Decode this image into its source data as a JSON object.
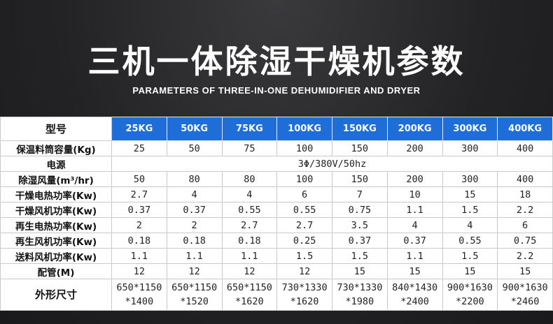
{
  "title": "三机一体除湿干燥机参数",
  "subtitle": "PARAMETERS OF THREE-IN-ONE DEHUMIDIFIER AND DRYER",
  "table": {
    "header_label": "型号",
    "models": [
      "25KG",
      "50KG",
      "75KG",
      "100KG",
      "150KG",
      "200KG",
      "300KG",
      "400KG"
    ],
    "rows": [
      {
        "label": "保温料筒容量(Kg)",
        "values": [
          "25",
          "50",
          "75",
          "100",
          "150",
          "200",
          "300",
          "400"
        ]
      },
      {
        "label": "除湿风量(m³/hr)",
        "values": [
          "50",
          "80",
          "80",
          "100",
          "150",
          "200",
          "300",
          "400"
        ]
      },
      {
        "label": "干燥电热功率(Kw)",
        "values": [
          "2.7",
          "4",
          "4",
          "6",
          "7",
          "10",
          "15",
          "18"
        ]
      },
      {
        "label": "干燥风机功率(Kw)",
        "values": [
          "0.37",
          "0.37",
          "0.55",
          "0.55",
          "0.75",
          "1.1",
          "1.5",
          "2.2"
        ]
      },
      {
        "label": "再生电热功率(Kw)",
        "values": [
          "2",
          "2",
          "2.7",
          "2.7",
          "3.5",
          "4",
          "4",
          "6"
        ]
      },
      {
        "label": "再生风机功率(Kw)",
        "values": [
          "0.18",
          "0.18",
          "0.18",
          "0.25",
          "0.37",
          "0.37",
          "0.55",
          "0.75"
        ]
      },
      {
        "label": "送料风机功率(Kw)",
        "values": [
          "1.1",
          "1.1",
          "1.1",
          "1.5",
          "1.5",
          "1.1",
          "1.5",
          "2.2"
        ]
      },
      {
        "label": "配管(M)",
        "values": [
          "12",
          "12",
          "12",
          "12",
          "15",
          "15",
          "15",
          "15"
        ]
      }
    ],
    "power": {
      "label": "电源",
      "value": "3Φ/380V/50hz"
    },
    "dims": {
      "label": "外形尺寸",
      "values": [
        "650*1150 *1400",
        "650*1150 *1520",
        "650*1150 *1620",
        "730*1330 *1620",
        "730*1330 *1980",
        "840*1430 *2400",
        "900*1630 *2200",
        "900*1630 *2460"
      ]
    }
  }
}
